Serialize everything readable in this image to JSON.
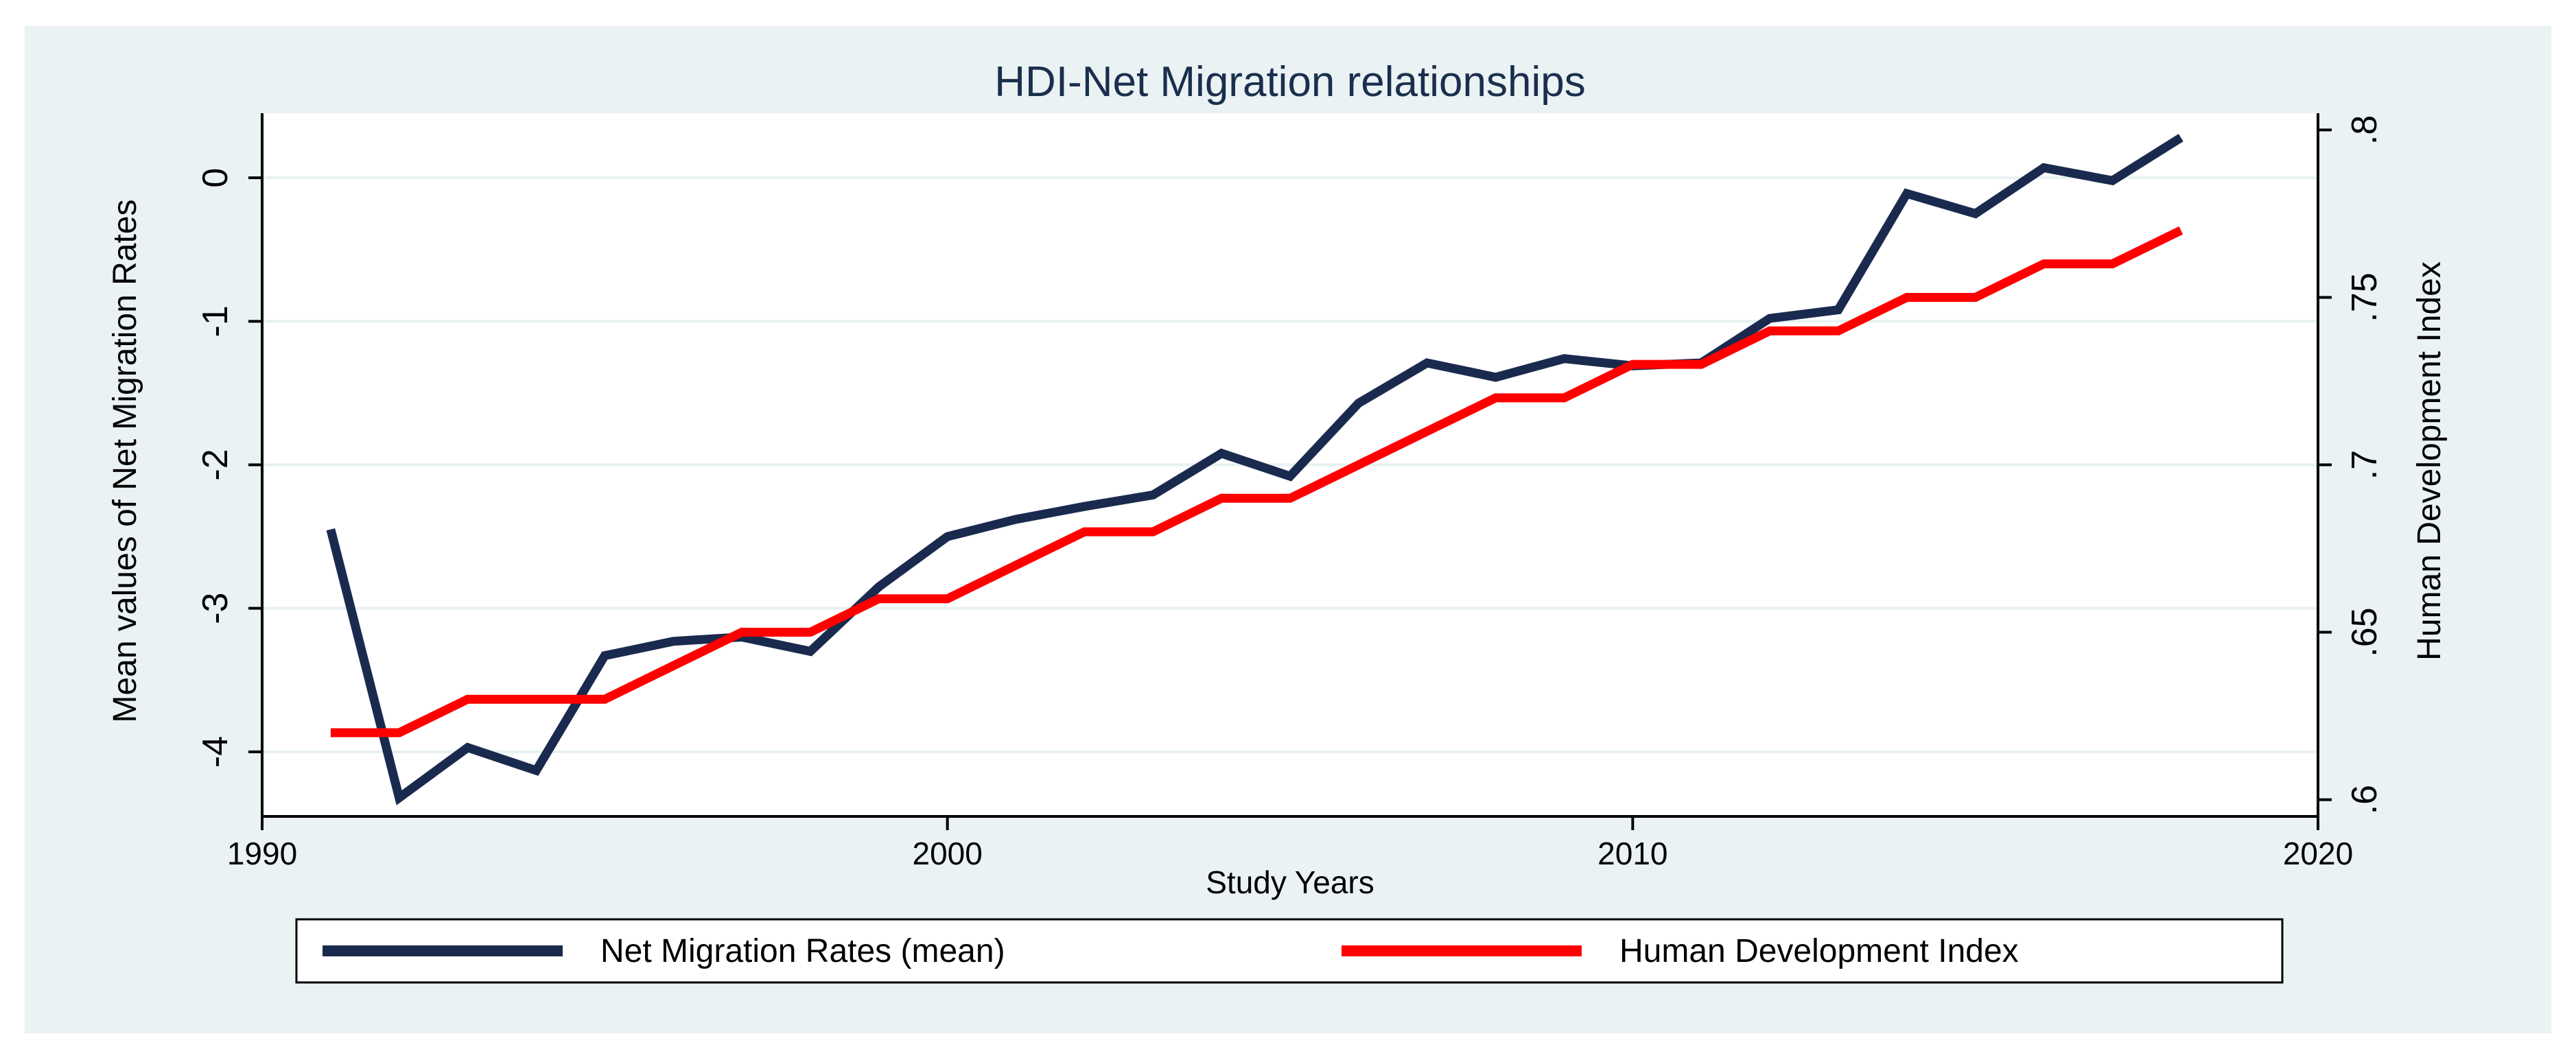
{
  "chart_data": {
    "type": "line",
    "title": "HDI-Net Migration relationships",
    "xlabel": "Study Years",
    "ylabel_left": "Mean values of Net Migration Rates",
    "ylabel_right": "Human Development Index",
    "xlim": [
      1990,
      2020
    ],
    "xticks": [
      "1990",
      "2000",
      "2010",
      "2020"
    ],
    "ylim_left": [
      -4.45,
      0.45
    ],
    "yticks_left": [
      {
        "value": 0,
        "label": "0"
      },
      {
        "value": -1,
        "label": "-1"
      },
      {
        "value": -2,
        "label": "-2"
      },
      {
        "value": -3,
        "label": "-3"
      },
      {
        "value": -4,
        "label": "-4"
      }
    ],
    "ylim_right": [
      0.595,
      0.805
    ],
    "yticks_right": [
      {
        "value": 0.6,
        "label": ".6"
      },
      {
        "value": 0.65,
        "label": ".65"
      },
      {
        "value": 0.7,
        "label": ".7"
      },
      {
        "value": 0.75,
        "label": ".75"
      },
      {
        "value": 0.8,
        "label": ".8"
      }
    ],
    "grid": "horizontal",
    "legend_position": "bottom",
    "colors": {
      "background": "#eaf2f3",
      "plot_background": "#ffffff",
      "grid": "#e8f1f2",
      "axis": "#000000",
      "title": "#1a2f4d"
    },
    "x": [
      1991,
      1992,
      1993,
      1994,
      1995,
      1996,
      1997,
      1998,
      1999,
      2000,
      2001,
      2002,
      2003,
      2004,
      2005,
      2006,
      2007,
      2008,
      2009,
      2010,
      2011,
      2012,
      2013,
      2014,
      2015,
      2016,
      2017,
      2018
    ],
    "series": [
      {
        "name": "Net Migration Rates (mean)",
        "axis": "left",
        "color": "#1a2a4f",
        "values": [
          -2.45,
          -4.32,
          -3.97,
          -4.13,
          -3.33,
          -3.23,
          -3.2,
          -3.3,
          -2.85,
          -2.5,
          -2.38,
          -2.29,
          -2.21,
          -1.92,
          -2.08,
          -1.57,
          -1.29,
          -1.39,
          -1.26,
          -1.31,
          -1.29,
          -0.98,
          -0.92,
          -0.11,
          -0.25,
          0.07,
          -0.02,
          0.28
        ]
      },
      {
        "name": "Human Development Index",
        "axis": "right",
        "color": "#ff0000",
        "values": [
          0.62,
          0.62,
          0.63,
          0.63,
          0.63,
          0.64,
          0.65,
          0.65,
          0.66,
          0.66,
          0.67,
          0.68,
          0.68,
          0.69,
          0.69,
          0.7,
          0.71,
          0.72,
          0.72,
          0.73,
          0.73,
          0.74,
          0.74,
          0.75,
          0.75,
          0.76,
          0.76,
          0.77
        ]
      }
    ]
  }
}
